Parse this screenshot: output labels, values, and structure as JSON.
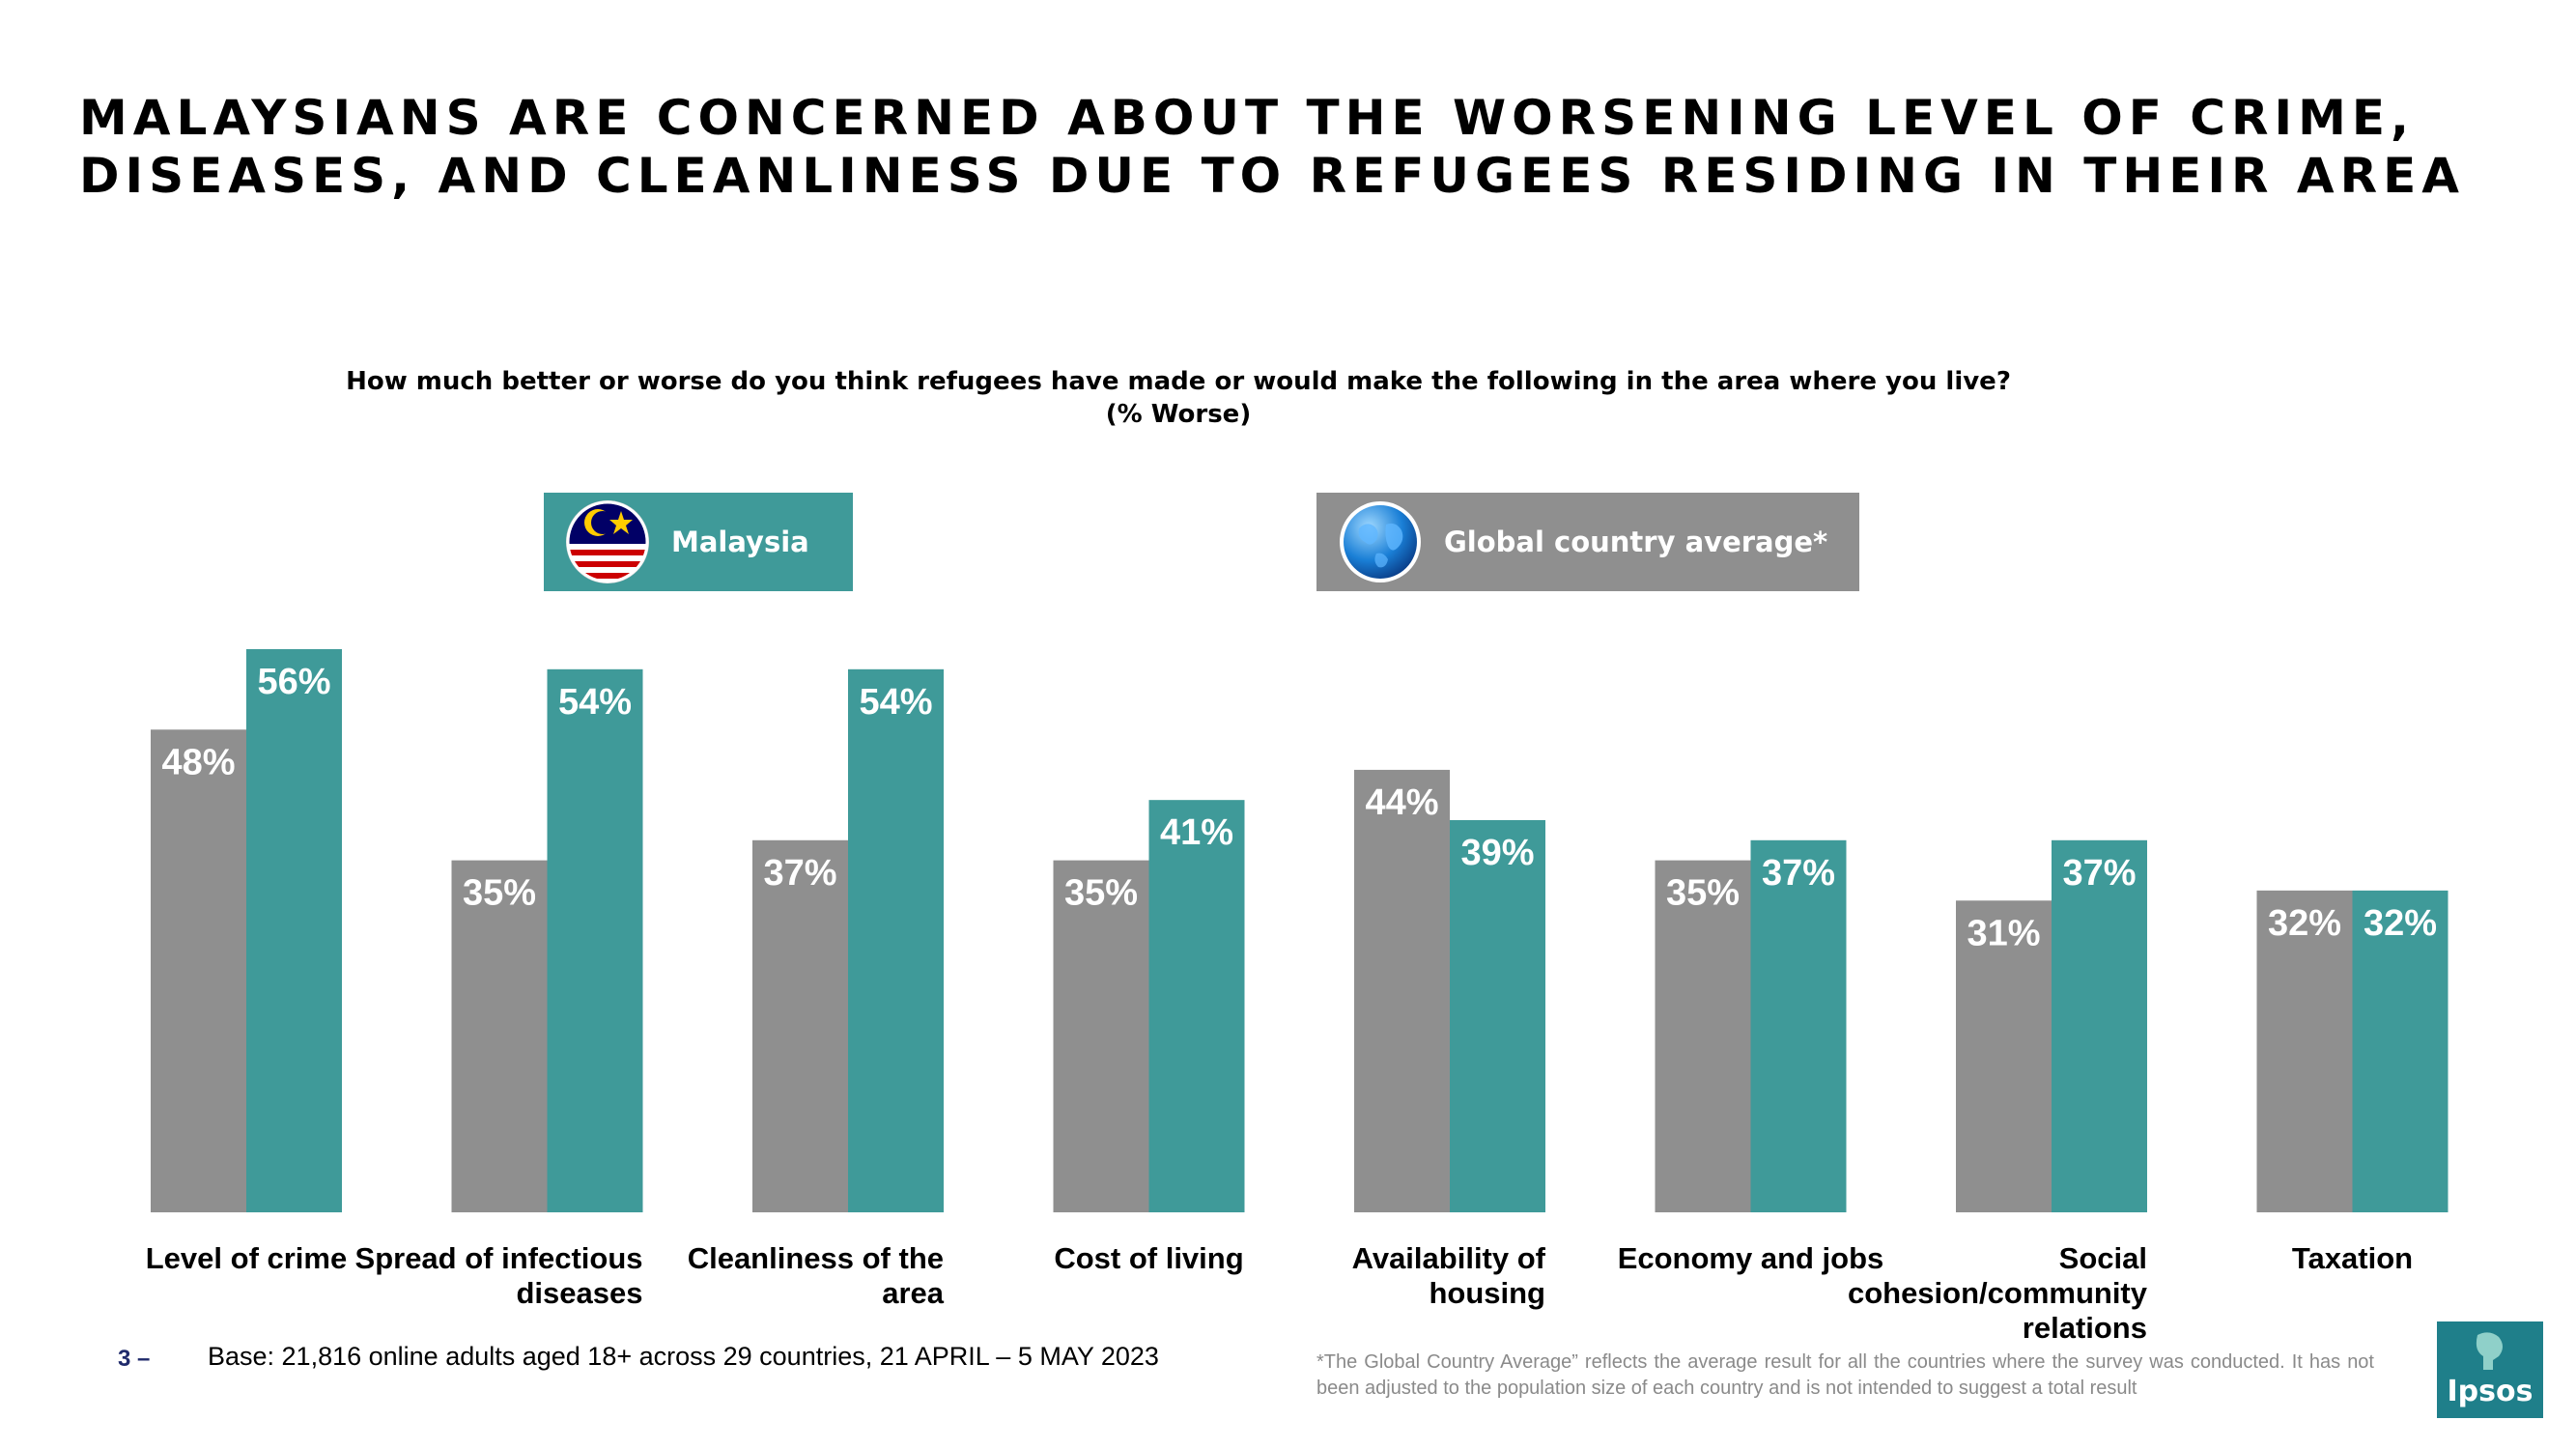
{
  "header": {
    "title": "MALAYSIANS ARE CONCERNED ABOUT THE WORSENING LEVEL OF CRIME, DISEASES, AND CLEANLINESS DUE TO REFUGEES RESIDING IN THEIR AREA",
    "question": "How much better or worse do you think refugees have made or would make the following in the area where you live?",
    "question_unit": "(% Worse)"
  },
  "legend": {
    "malaysia_label": "Malaysia",
    "global_label": "Global country average*",
    "malaysia_icon": "malaysia-flag-icon",
    "global_icon": "globe-icon"
  },
  "colors": {
    "global": "#8f8f8f",
    "malaysia": "#3f9a99",
    "logo": "#1f7f8a"
  },
  "chart_data": {
    "type": "bar",
    "categories": [
      [
        "Level of crime"
      ],
      [
        "Spread of infectious",
        "diseases"
      ],
      [
        "Cleanliness of the",
        "area"
      ],
      [
        "Cost of living"
      ],
      [
        "Availability of",
        "housing"
      ],
      [
        "Economy and jobs"
      ],
      [
        "Social",
        "cohesion/community",
        "relations"
      ],
      [
        "Taxation"
      ]
    ],
    "series": [
      {
        "name": "Global country average*",
        "values": [
          48,
          35,
          37,
          35,
          44,
          35,
          31,
          32
        ]
      },
      {
        "name": "Malaysia",
        "values": [
          56,
          54,
          54,
          41,
          39,
          37,
          37,
          32
        ]
      }
    ],
    "value_suffix": "%",
    "ylim": [
      0,
      56
    ],
    "grid": false
  },
  "footer": {
    "page_number": "3 –",
    "base": "Base: 21,816 online adults aged 18+ across 29 countries,  21 APRIL – 5 MAY 2023",
    "footnote": "*The Global Country Average” reflects the average result for all the countries where the survey was conducted. It has not been adjusted to the population size of each country and is not intended to suggest a total result",
    "logo_text": "Ipsos"
  }
}
